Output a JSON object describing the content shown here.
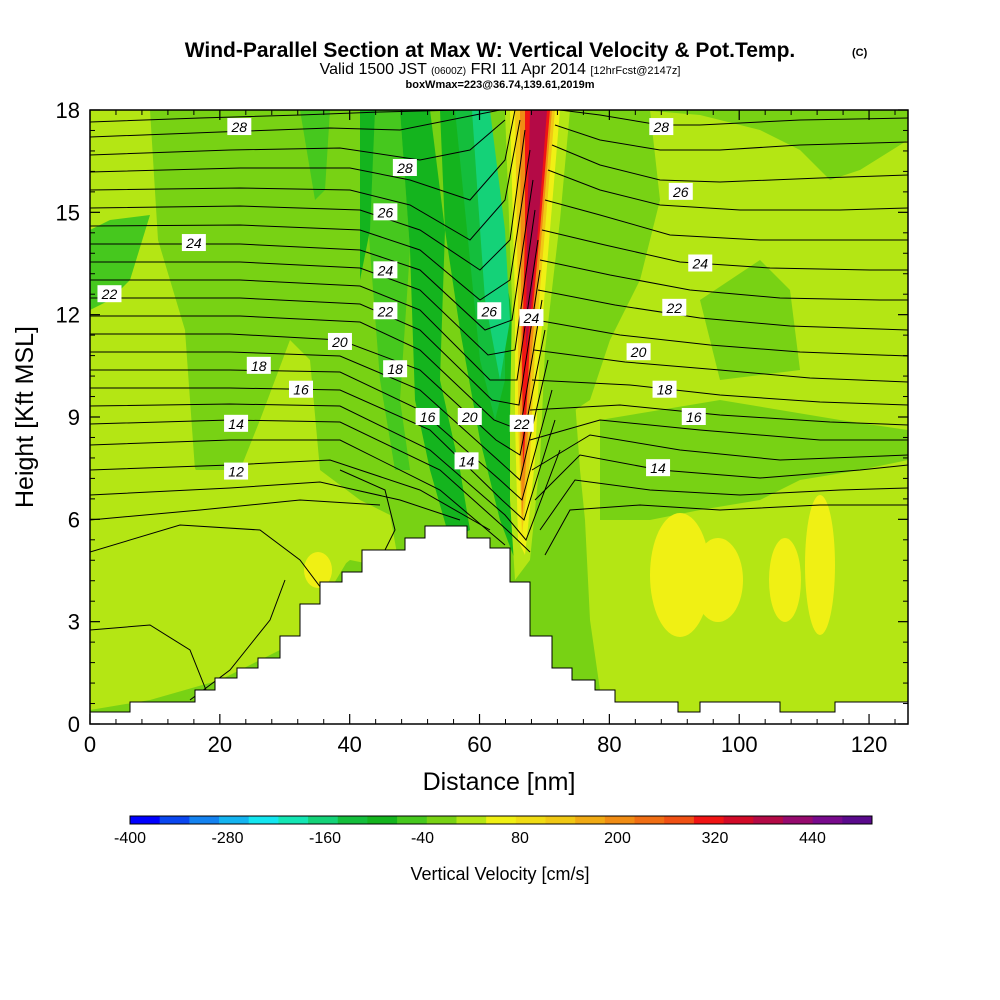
{
  "chart_data": {
    "type": "heatmap",
    "title": "Wind-Parallel Section at Max W: Vertical Velocity & Pot.Temp.",
    "title_mark": "(C)",
    "subtitle_parts": [
      "Valid 1500 JST",
      "(0600Z)",
      "FRI 11 Apr 2014",
      "[12hrFcst@2147z]"
    ],
    "subtitle2": "boxWmax=223@36.74,139.61,2019m",
    "xlabel": "Distance [nm]",
    "ylabel": "Height [Kft MSL]",
    "xlim": [
      0,
      126
    ],
    "ylim": [
      0,
      18
    ],
    "x_ticks": [
      0,
      20,
      40,
      60,
      80,
      100,
      120
    ],
    "y_ticks": [
      0,
      3,
      6,
      9,
      12,
      15,
      18
    ],
    "grid": false,
    "colorbar": {
      "label": "Vertical Velocity [cm/s]",
      "tick_labels": [
        "-400",
        "-280",
        "-160",
        "-40",
        "80",
        "200",
        "320",
        "440"
      ],
      "colors": [
        "#0000ff",
        "#0a46f0",
        "#1482f0",
        "#14b4f0",
        "#14e6f0",
        "#14e6b4",
        "#14d278",
        "#14be3c",
        "#14b41e",
        "#46c81e",
        "#78d214",
        "#b4e614",
        "#f0f014",
        "#f0dc14",
        "#f0c814",
        "#f0aa14",
        "#f08c14",
        "#f06e14",
        "#f05014",
        "#f01414",
        "#d20a28",
        "#b40a46",
        "#960a6e",
        "#780a8c",
        "#5a0a8c"
      ]
    },
    "series": [
      {
        "contour_labels": [
          {
            "text": "28",
            "x": 23,
            "y": 17.5
          },
          {
            "text": "28",
            "x": 48.5,
            "y": 16.3
          },
          {
            "text": "28",
            "x": 88,
            "y": 17.5
          },
          {
            "text": "26",
            "x": 45.5,
            "y": 15.0
          },
          {
            "text": "26",
            "x": 91,
            "y": 15.6
          },
          {
            "text": "26",
            "x": 61.5,
            "y": 12.1
          },
          {
            "text": "24",
            "x": 16,
            "y": 14.1
          },
          {
            "text": "24",
            "x": 45.5,
            "y": 13.3
          },
          {
            "text": "24",
            "x": 94,
            "y": 13.5
          },
          {
            "text": "24",
            "x": 68,
            "y": 11.9
          },
          {
            "text": "22",
            "x": 3,
            "y": 12.6
          },
          {
            "text": "22",
            "x": 45.5,
            "y": 12.1
          },
          {
            "text": "22",
            "x": 90,
            "y": 12.2
          },
          {
            "text": "22",
            "x": 66.5,
            "y": 8.8
          },
          {
            "text": "20",
            "x": 38.5,
            "y": 11.2
          },
          {
            "text": "20",
            "x": 84.5,
            "y": 10.9
          },
          {
            "text": "20",
            "x": 58.5,
            "y": 9.0
          },
          {
            "text": "18",
            "x": 26,
            "y": 10.5
          },
          {
            "text": "18",
            "x": 47,
            "y": 10.4
          },
          {
            "text": "18",
            "x": 88.5,
            "y": 9.8
          },
          {
            "text": "16",
            "x": 32.5,
            "y": 9.8
          },
          {
            "text": "16",
            "x": 52,
            "y": 9.0
          },
          {
            "text": "16",
            "x": 93,
            "y": 9.0
          },
          {
            "text": "14",
            "x": 22.5,
            "y": 8.8
          },
          {
            "text": "14",
            "x": 58,
            "y": 7.7
          },
          {
            "text": "14",
            "x": 87.5,
            "y": 7.5
          },
          {
            "text": "12",
            "x": 22.5,
            "y": 7.4
          }
        ]
      }
    ]
  }
}
